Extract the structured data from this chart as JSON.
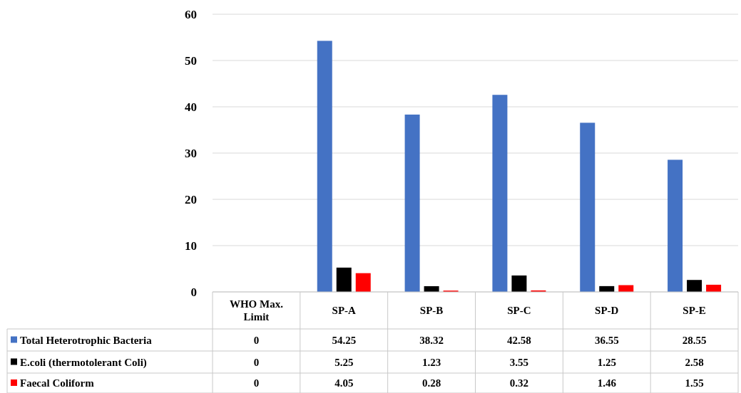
{
  "chart_data": {
    "type": "bar",
    "categories": [
      "WHO Max. Limit",
      "SP-A",
      "SP-B",
      "SP-C",
      "SP-D",
      "SP-E"
    ],
    "series": [
      {
        "name": "Total Heterotrophic Bacteria",
        "color": "#4472c4",
        "values": [
          0,
          54.25,
          38.32,
          42.58,
          36.55,
          28.55
        ]
      },
      {
        "name": "E.coli (thermotolerant Coli)",
        "color": "#000000",
        "values": [
          0,
          5.25,
          1.23,
          3.55,
          1.25,
          2.58
        ]
      },
      {
        "name": "Faecal Coliform",
        "color": "#ff0000",
        "values": [
          0,
          4.05,
          0.28,
          0.32,
          1.46,
          1.55
        ]
      }
    ],
    "ylim": [
      0,
      60
    ],
    "yticks": [
      0,
      10,
      20,
      30,
      40,
      50,
      60
    ],
    "grid": "y",
    "legend": "bottom",
    "data_labels": true
  }
}
